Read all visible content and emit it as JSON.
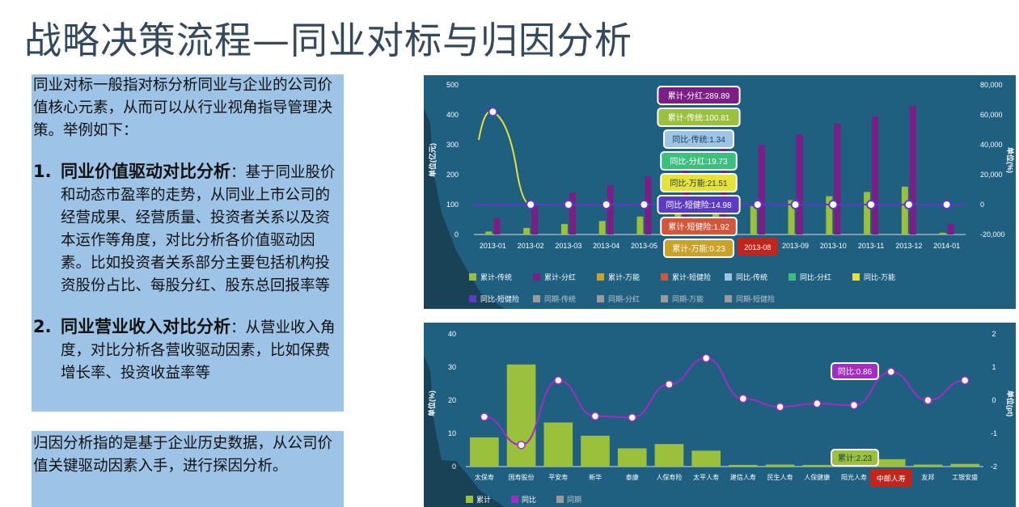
{
  "title": "战略决策流程—同业对标与归因分析",
  "box1": {
    "intro": "同业对标一般指对标分析同业与企业的公司价值核心元素，从而可以从行业视角指导管理决策。举例如下：",
    "items": [
      {
        "num": "1.",
        "head": "同业价值驱动对比分析",
        "sep": "：",
        "body": "基于同业股价和动态市盈率的走势，从同业上市公司的经营成果、经营质量、投资者关系以及资本运作等角度，对比分析各价值驱动因素。比如投资者关系部分主要包括机构投资股份占比、每股分红、股东总回报率等"
      },
      {
        "num": "2.",
        "head": "同业营业收入对比分析",
        "sep": "：",
        "body": "从营业收入角度，对比分析各营收驱动因素，比如保费增长率、投资收益率等"
      }
    ]
  },
  "box2": {
    "text": "归因分析指的是基于企业历史数据，从公司价值关键驱动因素入手，进行探因分析。"
  },
  "chart_data": [
    {
      "type": "bar",
      "ylabel": "单位(亿元)",
      "ylabel_right": "单位(%)",
      "ylim": [
        0,
        500
      ],
      "ylim_right": [
        -20000,
        80000
      ],
      "yticks": [
        "500",
        "400",
        "300",
        "200",
        "100",
        "0"
      ],
      "yticks_right": [
        "80,000",
        "60,000",
        "40,000",
        "20,000",
        "0",
        "-20,000"
      ],
      "categories": [
        "2013-01",
        "2013-02",
        "2013-03",
        "2013-04",
        "2013-05",
        "2013-06",
        "2013-07",
        "2013-08",
        "2013-09",
        "2013-10",
        "2013-11",
        "2013-12",
        "2014-01"
      ],
      "series": [
        {
          "name": "累计-传统",
          "color": "#9ac03c",
          "values": [
            10,
            22,
            35,
            45,
            60,
            72,
            100.81,
            95,
            115,
            128,
            142,
            160,
            6
          ]
        },
        {
          "name": "累计-分红",
          "color": "#7b1f86",
          "values": [
            55,
            95,
            140,
            165,
            195,
            225,
            289.89,
            300,
            335,
            370,
            395,
            430,
            35
          ]
        },
        {
          "name": "累计-万能",
          "color": "#c9a227",
          "values": [
            0,
            0,
            0,
            0,
            0,
            0,
            0.23,
            0,
            0,
            0,
            0,
            0,
            0
          ]
        },
        {
          "name": "累计-短健险",
          "color": "#d0573a",
          "values": [
            0,
            0,
            0,
            0,
            0,
            0,
            1.92,
            0,
            0,
            0,
            0,
            0,
            0
          ]
        }
      ],
      "line_series": [
        {
          "name": "同比-传统",
          "color": "#9cc4e6",
          "values": [
            62000,
            0,
            0,
            0,
            0,
            0,
            1.34,
            0,
            0,
            0,
            0,
            0,
            0
          ]
        },
        {
          "name": "同比-分红",
          "color": "#3cbf7c",
          "values": [
            0,
            0,
            0,
            0,
            0,
            0,
            19.73,
            0,
            0,
            0,
            0,
            0,
            0
          ]
        },
        {
          "name": "同比-万能",
          "color": "#e6e23a",
          "values": [
            62000,
            0,
            0,
            0,
            0,
            0,
            21.51,
            0,
            0,
            0,
            0,
            0,
            0
          ]
        },
        {
          "name": "同比-短健险",
          "color": "#5b3bc2",
          "values": [
            0,
            0,
            0,
            0,
            0,
            0,
            14.98,
            0,
            0,
            0,
            0,
            0,
            0
          ]
        }
      ],
      "legend": [
        {
          "name": "累计-传统",
          "color": "#9ac03c"
        },
        {
          "name": "累计-分红",
          "color": "#7b1f86"
        },
        {
          "name": "累计-万能",
          "color": "#c9a227"
        },
        {
          "name": "累计-短健险",
          "color": "#d0573a"
        },
        {
          "name": "同比-传统",
          "color": "#9cc4e6"
        },
        {
          "name": "同比-分红",
          "color": "#3cbf7c"
        },
        {
          "name": "同比-万能",
          "color": "#e6e23a"
        },
        {
          "name": "同比-短健险",
          "color": "#5b3bc2"
        },
        {
          "name": "同期-传统",
          "color": "#9a9a9a",
          "dim": true
        },
        {
          "name": "同期-分红",
          "color": "#9a9a9a",
          "dim": true
        },
        {
          "name": "同期-万能",
          "color": "#9a9a9a",
          "dim": true
        },
        {
          "name": "同期-短健险",
          "color": "#9a9a9a",
          "dim": true
        }
      ],
      "tooltips": [
        {
          "text": "累计-分红:289.89",
          "color": "#7b1f86"
        },
        {
          "text": "累计-传统:100.81",
          "color": "#9ac03c"
        },
        {
          "text": "同比-传统:1.34",
          "color": "#9cc4e6"
        },
        {
          "text": "同比-分红:19.73",
          "color": "#3cbf7c"
        },
        {
          "text": "同比-万能:21.51",
          "color": "#e6e23a"
        },
        {
          "text": "同比-短健险:14.98",
          "color": "#5b3bc2"
        },
        {
          "text": "累计-短健险:1.92",
          "color": "#d0573a"
        },
        {
          "text": "累计-万能:0.23",
          "color": "#c9a227"
        }
      ],
      "highlight_label": "2013-08"
    },
    {
      "type": "bar",
      "ylabel": "单位(%)",
      "ylabel_right": "单位(pt)",
      "ylim": [
        0,
        40
      ],
      "ylim_right": [
        -2,
        2
      ],
      "yticks": [
        "40",
        "30",
        "20",
        "10",
        "0"
      ],
      "yticks_right": [
        "2",
        "1",
        "0",
        "-1",
        "-2"
      ],
      "categories": [
        "太保寿",
        "国寿股份",
        "平安寿",
        "新华",
        "泰康",
        "人保寿险",
        "太平人寿",
        "建信人寿",
        "民生人寿",
        "人保健康",
        "阳光人寿",
        "中邮人寿",
        "友邦",
        "工银安盛"
      ],
      "series": [
        {
          "name": "累计",
          "color": "#9ac03c",
          "values": [
            8.8,
            30.8,
            13.3,
            9.3,
            5.5,
            6.8,
            4.8,
            0.5,
            0.6,
            0.5,
            0.5,
            2.23,
            0.6,
            0.8
          ]
        }
      ],
      "line_series": [
        {
          "name": "同比",
          "color": "#a32cc4",
          "values": [
            -0.5,
            -1.35,
            0.6,
            -0.48,
            -0.52,
            0.48,
            1.27,
            0.05,
            -0.2,
            -0.1,
            -0.15,
            0.86,
            0.0,
            0.6
          ]
        }
      ],
      "legend": [
        {
          "name": "累计",
          "color": "#9ac03c"
        },
        {
          "name": "同比",
          "color": "#a32cc4"
        },
        {
          "name": "同期",
          "color": "#9a9a9a",
          "dim": true
        }
      ],
      "tooltips": [
        {
          "text": "同比:0.86",
          "color": "#a32cc4"
        },
        {
          "text": "累计:2.23",
          "color": "#9ac03c"
        }
      ],
      "highlight_label": "中邮人寿"
    }
  ]
}
